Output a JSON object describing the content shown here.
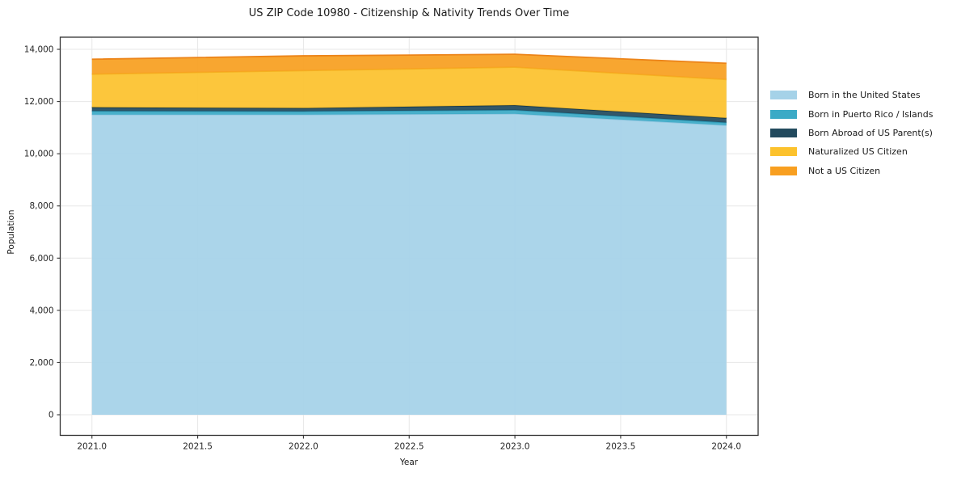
{
  "title": "US ZIP Code 10980 - Citizenship & Nativity Trends Over Time",
  "chart_data": {
    "type": "area",
    "stacked": true,
    "title": "US ZIP Code 10980 - Citizenship & Nativity Trends Over Time",
    "xlabel": "Year",
    "ylabel": "Population",
    "x": [
      2021,
      2022,
      2023,
      2024
    ],
    "series": [
      {
        "name": "Born in the United States",
        "values": [
          11500,
          11500,
          11530,
          11090
        ],
        "fill": "#A5D2E8",
        "edge": "#8FC5DF"
      },
      {
        "name": "Born in Puerto Rico / Islands",
        "values": [
          135,
          125,
          145,
          105
        ],
        "fill": "#3BAAC6",
        "edge": "#2D96B3"
      },
      {
        "name": "Born Abroad of US Parent(s)",
        "values": [
          145,
          125,
          185,
          175
        ],
        "fill": "#224A5E",
        "edge": "#18394A"
      },
      {
        "name": "Naturalized US Citizen",
        "values": [
          1270,
          1435,
          1455,
          1475
        ],
        "fill": "#FCC22D",
        "edge": "#F4B322"
      },
      {
        "name": "Not a US Citizen",
        "values": [
          570,
          565,
          495,
          620
        ],
        "fill": "#F89F20",
        "edge": "#EC8419"
      }
    ],
    "x_ticks": [
      2021.0,
      2021.5,
      2022.0,
      2022.5,
      2023.0,
      2023.5,
      2024.0
    ],
    "x_tick_labels": [
      "2021.0",
      "2021.5",
      "2022.0",
      "2022.5",
      "2023.0",
      "2023.5",
      "2024.0"
    ],
    "y_ticks": [
      0,
      2000,
      4000,
      6000,
      8000,
      10000,
      12000,
      14000
    ],
    "y_tick_labels": [
      "0",
      "2,000",
      "4,000",
      "6,000",
      "8,000",
      "10,000",
      "12,000",
      "14,000"
    ],
    "xlim": [
      2020.85,
      2024.15
    ],
    "ylim": [
      -790,
      14465
    ],
    "grid": true,
    "legend_position": "right-outside"
  },
  "colors": {
    "grid": "#E7E7E7",
    "spine": "#333333",
    "text": "#1A1A1A",
    "background": "#FFFFFF"
  }
}
